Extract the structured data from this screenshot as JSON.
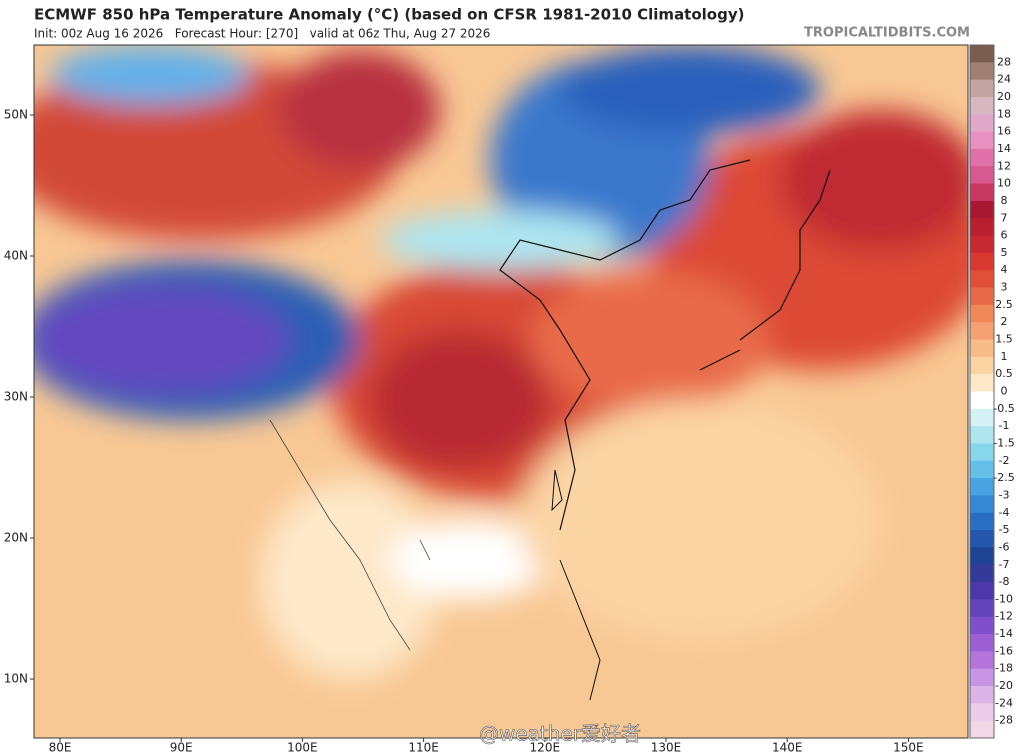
{
  "header": {
    "title": "ECMWF 850 hPa Temperature Anomaly (°C) (based on CFSR 1981-2010 Climatology)",
    "subtitle": "Init: 00z Aug 16 2026   Forecast Hour: [270]   valid at 06z Thu, Aug 27 2026",
    "source": "TROPICALTIDBITS.COM"
  },
  "map": {
    "lat_labels": [
      "50N",
      "40N",
      "30N",
      "20N",
      "10N"
    ],
    "lon_labels": [
      "80E",
      "90E",
      "100E",
      "110E",
      "120E",
      "130E",
      "140E",
      "150E"
    ]
  },
  "colorbar": {
    "labels": [
      "28",
      "24",
      "20",
      "18",
      "16",
      "14",
      "12",
      "10",
      "8",
      "7",
      "6",
      "5",
      "4",
      "3",
      "2.5",
      "2",
      "1.5",
      "1",
      "0.5",
      "0",
      "-0.5",
      "-1",
      "-1.5",
      "-2",
      "-2.5",
      "-3",
      "-4",
      "-5",
      "-6",
      "-7",
      "-8",
      "-10",
      "-12",
      "-14",
      "-16",
      "-18",
      "-20",
      "-24",
      "-28"
    ],
    "colors": [
      "#7a5c4c",
      "#a08070",
      "#c4a4a0",
      "#d8b8c0",
      "#e0a8c8",
      "#e890c0",
      "#e070a8",
      "#d85890",
      "#c83860",
      "#a81830",
      "#b82030",
      "#c82830",
      "#d83830",
      "#e05038",
      "#e86a48",
      "#f08858",
      "#f4a070",
      "#f8bc88",
      "#fbd4a4",
      "#fde8c8",
      "#ffffff",
      "#d4f2f6",
      "#aee6f0",
      "#88d6ec",
      "#64c0e8",
      "#48a4e0",
      "#3488d4",
      "#2a6ec4",
      "#2456ac",
      "#1f4494",
      "#343a98",
      "#4c38a8",
      "#6444bc",
      "#8050cc",
      "#9c60d4",
      "#b474dc",
      "#c894e4",
      "#dcb4e8",
      "#ecccec",
      "#f2d8e6"
    ]
  },
  "watermark": "@weather爱好者"
}
